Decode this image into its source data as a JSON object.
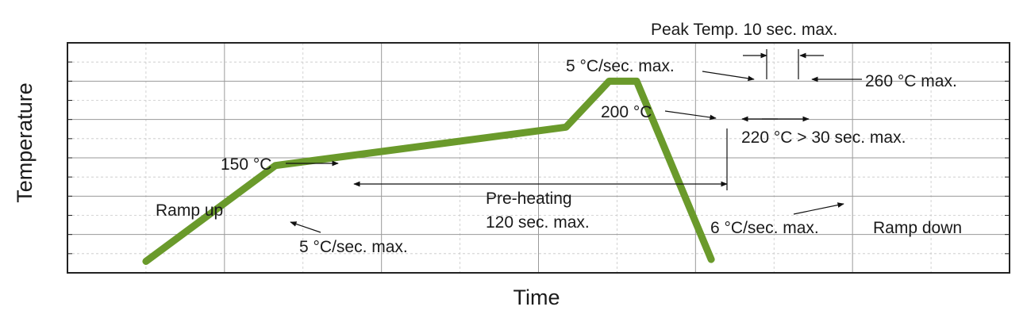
{
  "chart_data": {
    "type": "line",
    "title": "",
    "xlabel": "Time",
    "ylabel": "Temperature",
    "grid": true,
    "line_color": "#6a9a2b",
    "series": [
      {
        "x": [
          1,
          2.65,
          6.35,
          6.9,
          7.25,
          8.2
        ],
        "y": [
          0.3,
          2.8,
          3.8,
          5.0,
          5.0,
          0.35
        ]
      }
    ],
    "annotations": {
      "peak_temp": "Peak Temp. 10 sec. max.",
      "ramp_rate_peak": "5 °C/sec. max.",
      "max_temp": "260 °C max.",
      "temp_200": "200 °C",
      "above_220": "220 °C > 30 sec. max.",
      "temp_150": "150 °C",
      "preheating": "Pre-heating",
      "preheating_time": "120 sec. max.",
      "ramp_up": "Ramp up",
      "ramp_up_rate": "5 °C/sec. max.",
      "ramp_down_rate": "6 °C/sec. max.",
      "ramp_down": "Ramp down"
    }
  }
}
